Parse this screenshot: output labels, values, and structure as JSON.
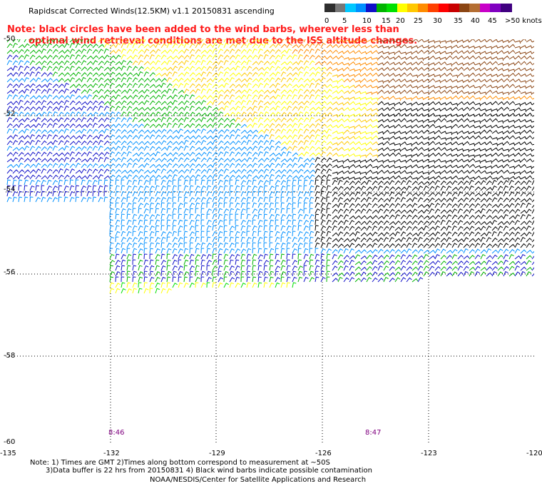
{
  "header": {
    "title": "Rapidscat Corrected Winds(12.5KM) v1.1 20150831 ascending"
  },
  "note": {
    "line1": "Note: black circles have been added to the wind barbs, wherever less than",
    "line2": "optimal wind retrieval conditions are met due to the ISS altitude changes."
  },
  "legend": {
    "colors": [
      "#2e2e2e",
      "#777777",
      "#00c8ff",
      "#0090ff",
      "#1010c8",
      "#00b400",
      "#00e000",
      "#ffff00",
      "#ffc800",
      "#ff8c00",
      "#ff4000",
      "#ff0000",
      "#c80000",
      "#8b4513",
      "#b46e32",
      "#c800c8",
      "#8000c0",
      "#400080"
    ],
    "labels": [
      "0",
      "5",
      "10",
      "15",
      "20",
      "25",
      "30",
      "35",
      "40",
      "45",
      ">50 knots"
    ]
  },
  "map": {
    "lat_labels": [
      "-50",
      "-52",
      "-54",
      "-56",
      "-58",
      "-60"
    ],
    "lon_labels": [
      "-135",
      "-132",
      "-129",
      "-126",
      "-123",
      "-120"
    ],
    "pass_times": [
      "8:46",
      "8:47"
    ],
    "grid": "dotted"
  },
  "footer": {
    "line1": "Note: 1) Times are GMT 2)Times along bottom correspond to measurement at ~50S",
    "line2": "3)Data buffer is 22 hrs from 20150831 4) Black wind barbs indicate possible contamination",
    "credit": "NOAA/NESDIS/Center for Satellite Applications and Research"
  }
}
